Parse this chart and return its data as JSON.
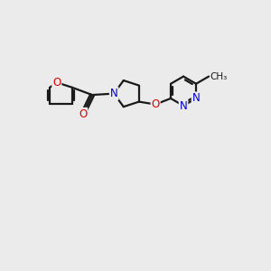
{
  "background_color": "#ebebeb",
  "bond_color": "#1a1a1a",
  "bond_width": 1.6,
  "atom_colors": {
    "O": "#dd0000",
    "N": "#0000cc",
    "C": "#1a1a1a"
  },
  "figsize": [
    3.0,
    3.0
  ],
  "dpi": 100
}
